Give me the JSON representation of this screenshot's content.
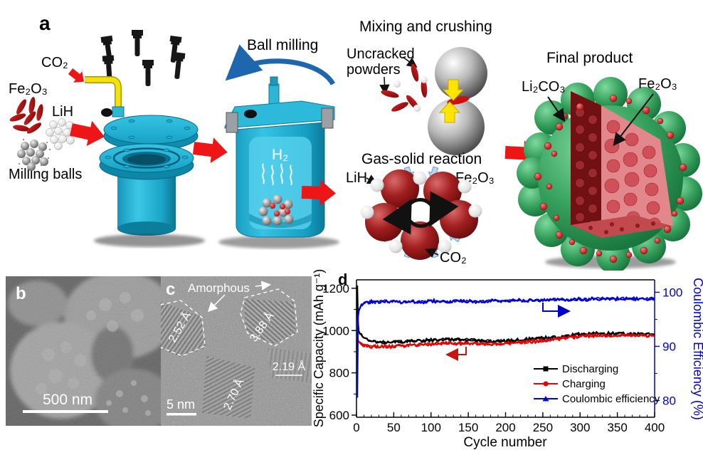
{
  "panel_a": {
    "label": "a",
    "materials": {
      "co2": "CO₂",
      "fe2o3": "Fe₂O₃",
      "lih": "LiH",
      "milling_balls": "Milling balls"
    },
    "ball_milling": {
      "title": "Ball milling",
      "gas": "H₂"
    },
    "mixing": {
      "title": "Mixing and crushing",
      "uncracked_line1": "Uncracked",
      "uncracked_line2": "powders"
    },
    "gas_solid": {
      "title": "Gas-solid reaction",
      "lih": "LiH",
      "fe2o3": "Fe₂O₃",
      "co2": "CO₂"
    },
    "final": {
      "title": "Final product",
      "li2co3": "Li₂CO₃",
      "fe2o3": "Fe₂O₃"
    },
    "colors": {
      "machine_cyan": "#25b4d6",
      "arrow_red": "#ed1515",
      "pipe_yellow": "#f2e20a",
      "arrow_blue": "#1e67ae",
      "sphere_dark_red": "#7a0f0f",
      "product_green": "#2e9e57"
    }
  },
  "panel_b": {
    "label": "b",
    "scale_bar": "500 nm"
  },
  "panel_c": {
    "label": "c",
    "annotations": {
      "amorphous": "Amorphous",
      "d1": "2.52 Å",
      "d2": "3.88 Å",
      "d3": "2.19 Å",
      "d4": "2.70 Å"
    },
    "scale_bar": "5 nm"
  },
  "panel_d": {
    "label": "d"
  },
  "chart_data": {
    "type": "line",
    "xlabel": "Cycle number",
    "ylabel_left": "Specific Capacity (mAh g⁻¹)",
    "ylabel_right": "Coulombic Efficiency (%)",
    "x_ticks": [
      0,
      50,
      100,
      150,
      200,
      250,
      300,
      350,
      400
    ],
    "x_minor_step": 10,
    "xlim": [
      0,
      400
    ],
    "left_axis": {
      "range": [
        590,
        1240
      ],
      "ticks": [
        600,
        800,
        1000,
        1200
      ],
      "minor": [
        700,
        900,
        1100
      ],
      "color": "#000000"
    },
    "right_axis": {
      "range": [
        76.9,
        102.3
      ],
      "ticks": [
        80,
        90,
        100
      ],
      "minor": [
        85,
        95
      ],
      "color": "#0000cc"
    },
    "grid": false,
    "legend_position": "lower-right-inside",
    "x": [
      1,
      2,
      3,
      5,
      8,
      12,
      16,
      20,
      25,
      30,
      40,
      50,
      60,
      70,
      80,
      90,
      100,
      110,
      120,
      130,
      140,
      150,
      160,
      170,
      180,
      190,
      200,
      210,
      220,
      230,
      240,
      250,
      260,
      270,
      280,
      290,
      300,
      310,
      320,
      330,
      340,
      350,
      360,
      370,
      380,
      390,
      400
    ],
    "series": [
      {
        "name": "Discharging",
        "axis": "left",
        "color": "#000000",
        "marker": "square",
        "y": [
          1210,
          1040,
          1000,
          985,
          972,
          962,
          955,
          950,
          946,
          944,
          943,
          945,
          947,
          950,
          952,
          953,
          955,
          957,
          958,
          958,
          957,
          956,
          953,
          951,
          950,
          950,
          951,
          953,
          955,
          958,
          961,
          964,
          967,
          970,
          974,
          978,
          982,
          984,
          985,
          986,
          986,
          985,
          984,
          984,
          983,
          983,
          982
        ]
      },
      {
        "name": "Charging",
        "axis": "left",
        "color": "#e60000",
        "marker": "circle",
        "y": [
          970,
          955,
          945,
          938,
          933,
          929,
          927,
          925,
          924,
          923,
          923,
          925,
          928,
          931,
          933,
          935,
          937,
          939,
          940,
          940,
          940,
          940,
          939,
          938,
          938,
          938,
          939,
          941,
          943,
          946,
          949,
          953,
          957,
          961,
          965,
          969,
          973,
          976,
          977,
          978,
          978,
          977,
          977,
          976,
          976,
          975,
          975
        ]
      },
      {
        "name": "Coulombic efficiency",
        "axis": "right",
        "color": "#0000dd",
        "marker": "triangle",
        "y": [
          80.5,
          95.5,
          96.8,
          97.3,
          97.7,
          98,
          98.1,
          98.2,
          98.2,
          98.3,
          98.3,
          98.3,
          98.2,
          98.3,
          98.3,
          98.2,
          98.4,
          98.3,
          98.2,
          98.3,
          98.3,
          98.3,
          98.3,
          98.3,
          98.4,
          98.4,
          98.4,
          98.5,
          98.5,
          98.5,
          98.5,
          98.6,
          98.6,
          98.6,
          98.7,
          98.7,
          98.7,
          98.7,
          98.8,
          98.8,
          98.8,
          98.8,
          98.8,
          98.8,
          98.8,
          98.8,
          98.8
        ]
      }
    ],
    "legend": [
      "Discharging",
      "Charging",
      "Coulombic efficiency"
    ]
  }
}
